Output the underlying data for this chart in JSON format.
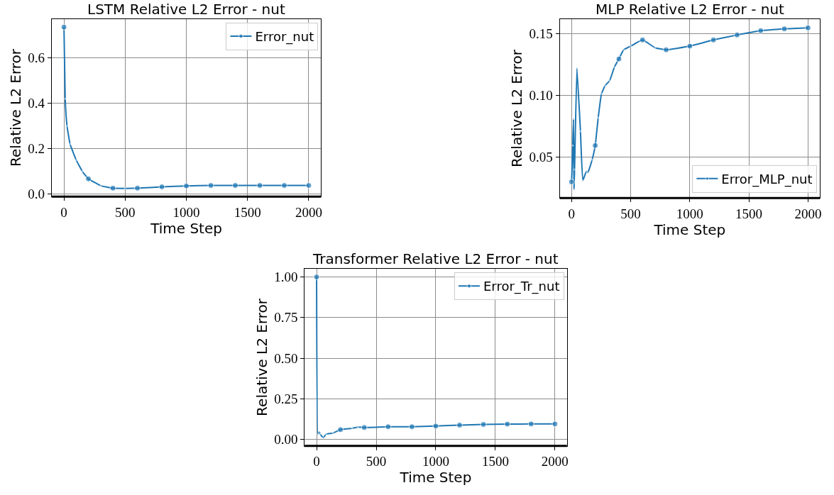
{
  "chart_data": [
    {
      "type": "line",
      "title": "LSTM Relative L2 Error - nut",
      "xlabel": "Time Step",
      "ylabel": "Relative L2 Error",
      "grid": true,
      "legend": "top right",
      "marker": "circle",
      "line_style": "solid",
      "xlim": [
        -100,
        2100
      ],
      "ylim": [
        -0.011,
        0.772
      ],
      "xticks": [
        0,
        500,
        1000,
        1500,
        2000
      ],
      "yticks": [
        {
          "value": 0,
          "label": "0.0"
        },
        0.2,
        0.4,
        0.6
      ],
      "x": [
        0,
        10,
        25,
        50,
        100,
        150,
        200,
        300,
        400,
        500,
        600,
        800,
        1000,
        1200,
        1400,
        1600,
        1800,
        2000
      ],
      "series": [
        {
          "name": "Error_nut",
          "color": "#1f77b4",
          "values": [
            0.736,
            0.42,
            0.3,
            0.22,
            0.15,
            0.1,
            0.067,
            0.037,
            0.026,
            0.025,
            0.026,
            0.032,
            0.036,
            0.038,
            0.038,
            0.038,
            0.038,
            0.038
          ]
        }
      ]
    },
    {
      "type": "line",
      "title": "MLP Relative L2 Error - nut",
      "xlabel": "Time Step",
      "ylabel": "Relative L2 Error",
      "grid": true,
      "legend": "bottom right",
      "marker": "circle",
      "line_style": "solid",
      "xlim": [
        -100,
        2100
      ],
      "ylim": [
        0.017,
        0.162
      ],
      "xticks": [
        0,
        500,
        1000,
        1500,
        2000
      ],
      "yticks": [
        0.05,
        {
          "value": 0.1,
          "label": "0.10"
        },
        0.15
      ],
      "x": [
        0,
        10,
        16,
        20,
        25,
        45,
        75,
        95,
        125,
        138,
        174,
        200,
        225,
        253,
        283,
        322,
        362,
        400,
        440,
        500,
        600,
        708,
        800,
        1000,
        1200,
        1400,
        1600,
        1800,
        2000
      ],
      "series": [
        {
          "name": "Error_MLP_nut",
          "color": "#1f77b4",
          "values": [
            0.03,
            0.0595,
            0.081,
            0.024,
            0.04,
            0.122,
            0.071,
            0.031,
            0.0386,
            0.0376,
            0.048,
            0.0595,
            0.082,
            0.1014,
            0.108,
            0.112,
            0.123,
            0.1296,
            0.137,
            0.14,
            0.145,
            0.1386,
            0.137,
            0.14,
            0.145,
            0.149,
            0.1525,
            0.154,
            0.1548
          ]
        }
      ]
    },
    {
      "type": "line",
      "title": "Transformer Relative L2 Error - nut",
      "xlabel": "Time Step",
      "ylabel": "Relative L2 Error",
      "grid": true,
      "legend": "top right",
      "marker": "circle",
      "line_style": "solid",
      "xlim": [
        -100,
        2100
      ],
      "ylim": [
        -0.0395,
        1.0495
      ],
      "xticks": [
        0,
        500,
        1000,
        1500,
        2000
      ],
      "yticks": [
        {
          "value": 0,
          "label": "0.00"
        },
        0.25,
        {
          "value": 0.5,
          "label": "0.50"
        },
        0.75,
        {
          "value": 1,
          "label": "1.00"
        }
      ],
      "x": [
        0,
        10,
        20,
        30,
        56,
        79,
        139,
        200,
        298,
        347,
        400,
        600,
        800,
        1000,
        1200,
        1400,
        1600,
        1800,
        2000
      ],
      "series": [
        {
          "name": "Error_Tr_nut",
          "color": "#1f77b4",
          "values": [
            1.0,
            0.032,
            0.046,
            0.032,
            0.01,
            0.032,
            0.039,
            0.06,
            0.068,
            0.076,
            0.073,
            0.078,
            0.078,
            0.082,
            0.088,
            0.092,
            0.094,
            0.095,
            0.095
          ]
        }
      ]
    }
  ]
}
